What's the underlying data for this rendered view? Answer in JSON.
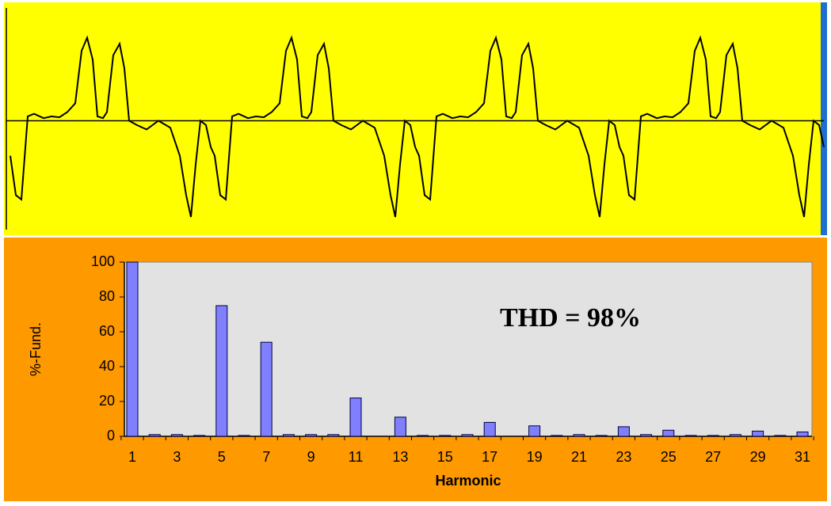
{
  "chart_data": [
    {
      "type": "line",
      "color": "#000000",
      "background": "#ffff00",
      "xlim": [
        0,
        1040
      ],
      "ylim": [
        -1.2,
        1.2
      ],
      "x": [
        8,
        15,
        22,
        30,
        38,
        50,
        60,
        70,
        80,
        90,
        98,
        105,
        112,
        118,
        125,
        130,
        138,
        146,
        152,
        158,
        168,
        180,
        195,
        210,
        222,
        230,
        236,
        242,
        248,
        255,
        261,
        266,
        273,
        280,
        288,
        296,
        308,
        318,
        328,
        338,
        348,
        356,
        363,
        370,
        376,
        383,
        388,
        396,
        404,
        410,
        416,
        426,
        438,
        453,
        468,
        480,
        488,
        494,
        500,
        506,
        513,
        519,
        524,
        531,
        538,
        546,
        554,
        566,
        576,
        586,
        596,
        606,
        614,
        621,
        628,
        634,
        641,
        646,
        654,
        662,
        668,
        674,
        684,
        696,
        711,
        726,
        738,
        746,
        752,
        758,
        764,
        771,
        777,
        782,
        789,
        796,
        804,
        812,
        824,
        834,
        844,
        854,
        864,
        872,
        879,
        886,
        892,
        899,
        904,
        912,
        920,
        926,
        932,
        942,
        954,
        969,
        984,
        996,
        1004,
        1010,
        1016,
        1022,
        1029,
        1035
      ],
      "values": [
        -0.4,
        -0.85,
        -0.9,
        0.05,
        0.08,
        0.03,
        0.05,
        0.04,
        0.1,
        0.2,
        0.8,
        0.95,
        0.7,
        0.05,
        0.03,
        0.1,
        0.75,
        0.88,
        0.6,
        0,
        -0.05,
        -0.1,
        0,
        -0.08,
        -0.4,
        -0.85,
        -1.1,
        -0.5,
        0,
        -0.05,
        -0.3,
        -0.4,
        -0.85,
        -0.9,
        0.05,
        0.08,
        0.03,
        0.05,
        0.04,
        0.1,
        0.2,
        0.8,
        0.95,
        0.7,
        0.05,
        0.03,
        0.1,
        0.75,
        0.88,
        0.6,
        0,
        -0.05,
        -0.1,
        0,
        -0.08,
        -0.4,
        -0.85,
        -1.1,
        -0.5,
        0,
        -0.05,
        -0.3,
        -0.4,
        -0.85,
        -0.9,
        0.05,
        0.08,
        0.03,
        0.05,
        0.04,
        0.1,
        0.2,
        0.8,
        0.95,
        0.7,
        0.05,
        0.03,
        0.1,
        0.75,
        0.88,
        0.6,
        0,
        -0.05,
        -0.1,
        0,
        -0.08,
        -0.4,
        -0.85,
        -1.1,
        -0.5,
        0,
        -0.05,
        -0.3,
        -0.4,
        -0.85,
        -0.9,
        0.05,
        0.08,
        0.03,
        0.05,
        0.04,
        0.1,
        0.2,
        0.8,
        0.95,
        0.7,
        0.05,
        0.03,
        0.1,
        0.75,
        0.88,
        0.6,
        0,
        -0.05,
        -0.1,
        0,
        -0.08,
        -0.4,
        -0.85,
        -1.1,
        -0.5,
        0,
        -0.05,
        -0.3
      ]
    },
    {
      "type": "bar",
      "color": "#8080ff",
      "background": "#ff9900",
      "annotation": "THD = 98%",
      "x_label": "Harmonic",
      "y_label": "%-Fund.",
      "categories": [
        "1",
        null,
        "3",
        null,
        "5",
        null,
        "7",
        null,
        "9",
        null,
        "11",
        null,
        "13",
        null,
        "15",
        null,
        "17",
        null,
        "19",
        null,
        "21",
        null,
        "23",
        null,
        "25",
        null,
        "27",
        null,
        "29",
        null,
        "31"
      ],
      "values": [
        100,
        1,
        1,
        0.5,
        75,
        0.5,
        54,
        1,
        1,
        1,
        22,
        0,
        11,
        0.5,
        0.5,
        1,
        8,
        0,
        6,
        0.5,
        1,
        0.5,
        5.5,
        1,
        3.5,
        0.5,
        0.5,
        1,
        3,
        0.5,
        2.5
      ],
      "ylim": [
        0,
        100
      ],
      "yticks": [
        0,
        20,
        40,
        60,
        80,
        100
      ]
    }
  ]
}
